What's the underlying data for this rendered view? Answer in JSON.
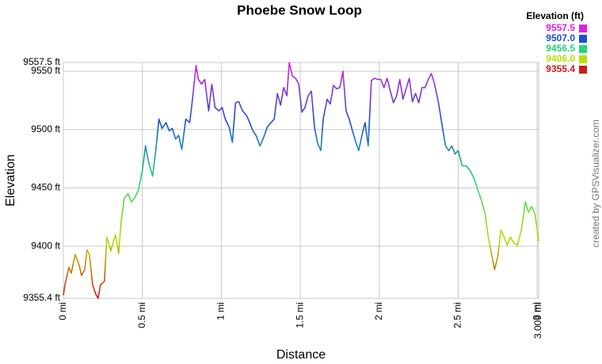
{
  "chart_data": {
    "type": "line",
    "title": "Phoebe Snow Loop",
    "x_label": "Distance",
    "y_label": "Elevation",
    "credit": "created by GPSVisualizer.com",
    "legend_title": "Elevation (ft)",
    "color_scale": [
      {
        "value": 9557.5,
        "label": "9557.5",
        "color": "#dd22dd"
      },
      {
        "value": 9507,
        "label": "9507.0",
        "color": "#1a4fd6"
      },
      {
        "value": 9456.5,
        "label": "9456.5",
        "color": "#22d67a"
      },
      {
        "value": 9406,
        "label": "9406.0",
        "color": "#b4e000"
      },
      {
        "value": 9355.4,
        "label": "9355.4",
        "color": "#d01818"
      }
    ],
    "xlim": [
      0,
      3.009
    ],
    "ylim": [
      9355.4,
      9557.5
    ],
    "xticks": [
      {
        "value": 0,
        "label": "0 mi"
      },
      {
        "value": 0.5,
        "label": "0.5 mi"
      },
      {
        "value": 1,
        "label": "1 mi"
      },
      {
        "value": 1.5,
        "label": "1.5 mi"
      },
      {
        "value": 2,
        "label": "2 mi"
      },
      {
        "value": 2.5,
        "label": "2.5 mi"
      },
      {
        "value": 3,
        "label": "3 mi"
      },
      {
        "value": 3.009,
        "label": "3.009 mi"
      }
    ],
    "yticks": [
      {
        "value": 9355.4,
        "label": "9355.4 ft"
      },
      {
        "value": 9400,
        "label": "9400 ft"
      },
      {
        "value": 9450,
        "label": "9450 ft"
      },
      {
        "value": 9500,
        "label": "9500 ft"
      },
      {
        "value": 9550,
        "label": "9550 ft"
      },
      {
        "value": 9557.5,
        "label": "9557.5 ft"
      }
    ],
    "grid": true,
    "x": [
      0,
      0.01,
      0.035,
      0.05,
      0.075,
      0.1,
      0.115,
      0.135,
      0.15,
      0.165,
      0.185,
      0.205,
      0.22,
      0.235,
      0.26,
      0.275,
      0.3,
      0.33,
      0.35,
      0.365,
      0.385,
      0.41,
      0.43,
      0.45,
      0.475,
      0.5,
      0.52,
      0.54,
      0.565,
      0.585,
      0.605,
      0.625,
      0.65,
      0.67,
      0.69,
      0.71,
      0.73,
      0.75,
      0.775,
      0.8,
      0.815,
      0.84,
      0.855,
      0.875,
      0.895,
      0.92,
      0.94,
      0.96,
      0.985,
      1.005,
      1.025,
      1.05,
      1.07,
      1.09,
      1.11,
      1.135,
      1.16,
      1.18,
      1.2,
      1.22,
      1.245,
      1.27,
      1.29,
      1.315,
      1.335,
      1.355,
      1.375,
      1.395,
      1.415,
      1.43,
      1.45,
      1.47,
      1.49,
      1.51,
      1.53,
      1.55,
      1.57,
      1.59,
      1.61,
      1.63,
      1.645,
      1.67,
      1.69,
      1.71,
      1.73,
      1.75,
      1.77,
      1.79,
      1.81,
      1.83,
      1.85,
      1.87,
      1.89,
      1.91,
      1.93,
      1.95,
      1.97,
      1.99,
      2.01,
      2.03,
      2.05,
      2.07,
      2.09,
      2.11,
      2.13,
      2.15,
      2.17,
      2.19,
      2.21,
      2.23,
      2.25,
      2.27,
      2.29,
      2.31,
      2.33,
      2.35,
      2.375,
      2.4,
      2.42,
      2.44,
      2.46,
      2.48,
      2.5,
      2.525,
      2.55,
      2.575,
      2.6,
      2.625,
      2.65,
      2.67,
      2.69,
      2.71,
      2.73,
      2.75,
      2.77,
      2.79,
      2.81,
      2.83,
      2.85,
      2.875,
      2.9,
      2.925,
      2.945,
      2.965,
      2.985,
      3,
      3.009
    ],
    "values": [
      9358,
      9367,
      9382,
      9377,
      9393,
      9384,
      9375,
      9380,
      9397,
      9393,
      9367,
      9359,
      9355.4,
      9367,
      9370,
      9408,
      9396,
      9410,
      9394,
      9420,
      9441,
      9445,
      9438,
      9441,
      9448,
      9465,
      9486,
      9472,
      9460,
      9482,
      9509,
      9501,
      9506,
      9499,
      9501,
      9492,
      9495,
      9483,
      9509,
      9506,
      9523,
      9555,
      9543,
      9539,
      9543,
      9516,
      9539,
      9519,
      9516,
      9519,
      9509,
      9502,
      9489,
      9523,
      9524,
      9516,
      9512,
      9506,
      9499,
      9495,
      9486,
      9494,
      9502,
      9506,
      9509,
      9531,
      9521,
      9536,
      9529,
      9557.5,
      9546,
      9544,
      9539,
      9515,
      9519,
      9529,
      9533,
      9502,
      9488,
      9482,
      9509,
      9526,
      9522,
      9538,
      9535,
      9536,
      9550,
      9516,
      9509,
      9499,
      9490,
      9482,
      9495,
      9506,
      9486,
      9542,
      9544,
      9543,
      9543,
      9536,
      9544,
      9533,
      9523,
      9529,
      9543,
      9526,
      9535,
      9544,
      9524,
      9531,
      9523,
      9536,
      9536,
      9543,
      9548,
      9539,
      9523,
      9502,
      9486,
      9482,
      9486,
      9479,
      9482,
      9469,
      9469,
      9465,
      9458,
      9448,
      9438,
      9428,
      9408,
      9394,
      9380,
      9391,
      9414,
      9408,
      9401,
      9408,
      9403,
      9401,
      9414,
      9438,
      9429,
      9434,
      9428,
      9414,
      9404
    ]
  }
}
